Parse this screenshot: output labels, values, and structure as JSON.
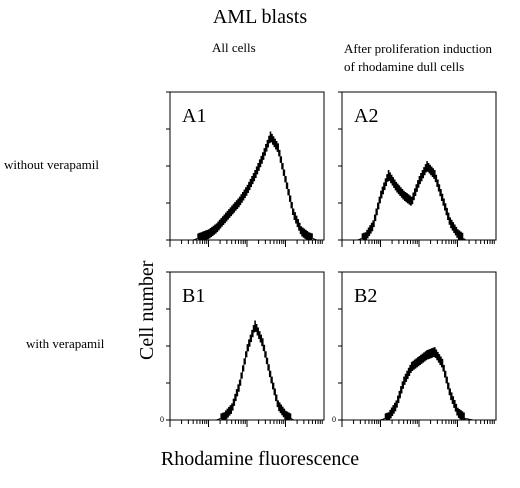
{
  "figure": {
    "title": "AML blasts",
    "col_left": "All cells",
    "col_right_line1": "After proliferation induction",
    "col_right_line2": "of rhodamine dull cells",
    "row_top": "without verapamil",
    "row_bottom": "with verapamil",
    "ylabel": "Cell number",
    "xlabel": "Rhodamine fluorescence"
  },
  "chart_data": [
    {
      "type": "area",
      "panel_label": "A1",
      "xlabel": "Rhodamine fluorescence",
      "ylabel": "Cell number",
      "xlim": [
        0,
        100
      ],
      "ylim": [
        0,
        100
      ],
      "grid": false,
      "x": [
        0,
        5,
        10,
        15,
        20,
        25,
        30,
        35,
        40,
        45,
        50,
        55,
        60,
        65,
        70,
        75,
        80,
        85,
        90,
        95,
        100
      ],
      "values": [
        0,
        0,
        0,
        0,
        2,
        4,
        8,
        14,
        20,
        26,
        34,
        44,
        56,
        70,
        62,
        40,
        18,
        6,
        2,
        0,
        0
      ]
    },
    {
      "type": "area",
      "panel_label": "A2",
      "xlabel": "Rhodamine fluorescence",
      "ylabel": "Cell number",
      "xlim": [
        0,
        100
      ],
      "ylim": [
        0,
        100
      ],
      "grid": false,
      "x": [
        0,
        5,
        10,
        15,
        20,
        25,
        30,
        35,
        40,
        45,
        50,
        55,
        60,
        65,
        70,
        75,
        80,
        85,
        90,
        95,
        100
      ],
      "values": [
        0,
        0,
        0,
        2,
        10,
        30,
        44,
        36,
        30,
        26,
        40,
        50,
        44,
        28,
        12,
        4,
        0,
        0,
        0,
        0,
        0
      ]
    },
    {
      "type": "area",
      "panel_label": "B1",
      "xlabel": "Rhodamine fluorescence",
      "ylabel": "Cell number",
      "xlim": [
        0,
        100
      ],
      "ylim": [
        0,
        100
      ],
      "grid": false,
      "x": [
        0,
        5,
        10,
        15,
        20,
        25,
        30,
        35,
        40,
        45,
        50,
        55,
        60,
        65,
        70,
        75,
        80,
        85,
        90,
        95,
        100
      ],
      "values": [
        0,
        0,
        0,
        0,
        0,
        0,
        0,
        2,
        8,
        24,
        48,
        64,
        52,
        30,
        10,
        3,
        0,
        0,
        0,
        0,
        0
      ]
    },
    {
      "type": "area",
      "panel_label": "B2",
      "xlabel": "Rhodamine fluorescence",
      "ylabel": "Cell number",
      "xlim": [
        0,
        100
      ],
      "ylim": [
        0,
        100
      ],
      "grid": false,
      "x": [
        0,
        5,
        10,
        15,
        20,
        25,
        30,
        35,
        40,
        45,
        50,
        55,
        60,
        65,
        70,
        75,
        80,
        85,
        90,
        95,
        100
      ],
      "values": [
        0,
        0,
        0,
        0,
        0,
        0,
        2,
        10,
        26,
        36,
        40,
        44,
        46,
        38,
        18,
        5,
        1,
        0,
        0,
        0,
        0
      ]
    }
  ]
}
